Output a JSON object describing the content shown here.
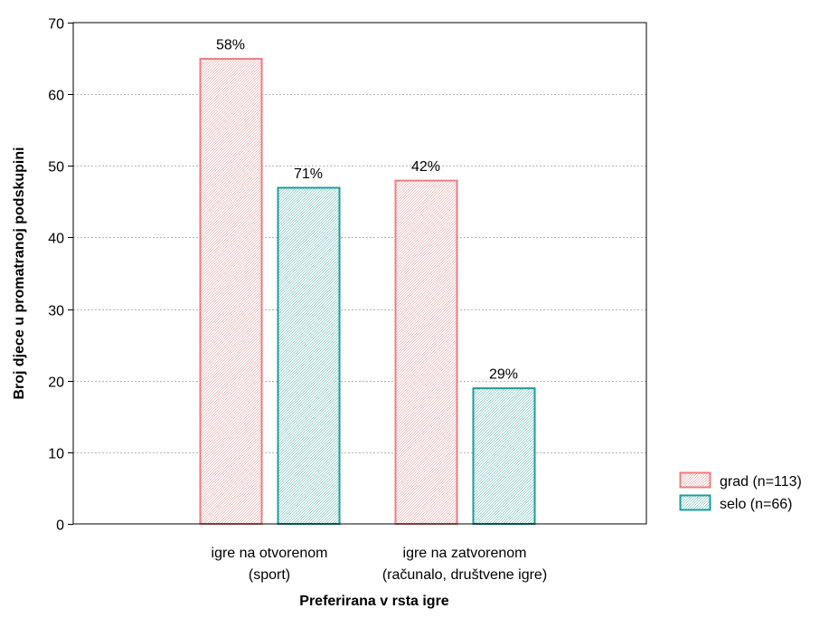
{
  "chart_data": {
    "type": "bar",
    "title": "",
    "xlabel": "Preferirana v rsta igre",
    "ylabel": "Broj djece u promatranoj podskupini",
    "ylim": [
      0,
      70
    ],
    "yticks": [
      0,
      10,
      20,
      30,
      40,
      50,
      60,
      70
    ],
    "grid": true,
    "legend_position": "right",
    "categories": [
      [
        "igre na otvorenom",
        "(sport)"
      ],
      [
        "igre na zatvorenom",
        "(računalo, društvene igre)"
      ]
    ],
    "series": [
      {
        "name": "grad (n=113)",
        "values": [
          65,
          48
        ],
        "labels": [
          "58%",
          "42%"
        ],
        "color": "#f07b7f",
        "pattern": "#f4b8ba"
      },
      {
        "name": "selo (n=66)",
        "values": [
          47,
          19
        ],
        "labels": [
          "71%",
          "29%"
        ],
        "color": "#1a9e9a",
        "pattern": "#8fd0cd"
      }
    ]
  }
}
